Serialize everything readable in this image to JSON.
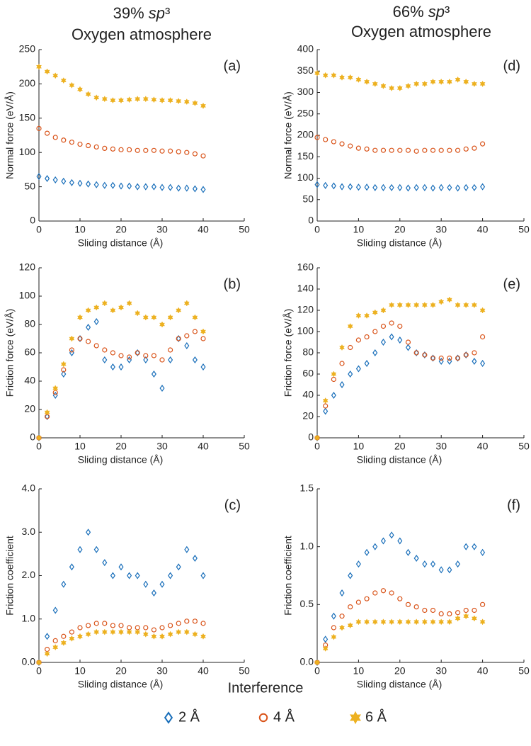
{
  "columns": [
    {
      "prefix": "39% ",
      "italic": "sp",
      "suffix": "³",
      "subtitle": "Oxygen atmosphere"
    },
    {
      "prefix": "66% ",
      "italic": "sp",
      "suffix": "³",
      "subtitle": "Oxygen atmosphere"
    }
  ],
  "legend": {
    "title": "Interference",
    "entries": [
      {
        "name": "2 Å",
        "color": "#1a6fba",
        "marker": "diamond"
      },
      {
        "name": "4 Å",
        "color": "#d95319",
        "marker": "circle"
      },
      {
        "name": "6 Å",
        "color": "#edb120",
        "marker": "star"
      }
    ]
  },
  "chart_data": [
    {
      "type": "scatter",
      "panel": "(a)",
      "xlabel": "Sliding distance (Å)",
      "ylabel": "Normal force (eV/Å)",
      "xlim": [
        0,
        50
      ],
      "xticks": [
        0,
        10,
        20,
        30,
        40,
        50
      ],
      "ylim": [
        0,
        250
      ],
      "yticks": [
        0,
        50,
        100,
        150,
        200,
        250
      ],
      "x": [
        0,
        2,
        4,
        6,
        8,
        10,
        12,
        14,
        16,
        18,
        20,
        22,
        24,
        26,
        28,
        30,
        32,
        34,
        36,
        38,
        40
      ],
      "series": [
        {
          "values": [
            65,
            62,
            60,
            58,
            56,
            55,
            54,
            53,
            52,
            52,
            51,
            51,
            50,
            50,
            50,
            49,
            49,
            48,
            48,
            47,
            46
          ]
        },
        {
          "values": [
            135,
            128,
            122,
            118,
            115,
            112,
            110,
            108,
            106,
            105,
            104,
            104,
            103,
            103,
            103,
            102,
            102,
            101,
            100,
            98,
            95
          ]
        },
        {
          "values": [
            225,
            218,
            212,
            205,
            198,
            192,
            185,
            180,
            178,
            176,
            176,
            177,
            178,
            178,
            177,
            176,
            176,
            175,
            174,
            172,
            168
          ]
        }
      ]
    },
    {
      "type": "scatter",
      "panel": "(b)",
      "xlabel": "Sliding distance (Å)",
      "ylabel": "Friction force (eV/Å)",
      "xlim": [
        0,
        50
      ],
      "xticks": [
        0,
        10,
        20,
        30,
        40,
        50
      ],
      "ylim": [
        0,
        120
      ],
      "yticks": [
        0,
        20,
        40,
        60,
        80,
        100,
        120
      ],
      "x": [
        0,
        2,
        4,
        6,
        8,
        10,
        12,
        14,
        16,
        18,
        20,
        22,
        24,
        26,
        28,
        30,
        32,
        34,
        36,
        38,
        40
      ],
      "series": [
        {
          "values": [
            0,
            15,
            30,
            45,
            60,
            70,
            78,
            82,
            55,
            50,
            50,
            55,
            60,
            55,
            45,
            35,
            55,
            70,
            65,
            55,
            50
          ]
        },
        {
          "values": [
            0,
            15,
            32,
            48,
            62,
            70,
            68,
            65,
            62,
            60,
            58,
            57,
            60,
            58,
            58,
            55,
            62,
            70,
            72,
            75,
            70
          ]
        },
        {
          "values": [
            0,
            18,
            35,
            52,
            70,
            85,
            90,
            92,
            95,
            90,
            92,
            95,
            88,
            85,
            85,
            80,
            85,
            90,
            95,
            85,
            75
          ]
        }
      ]
    },
    {
      "type": "scatter",
      "panel": "(c)",
      "xlabel": "Sliding distance (Å)",
      "ylabel": "Friction coefficient",
      "xlim": [
        0,
        50
      ],
      "xticks": [
        0,
        10,
        20,
        30,
        40,
        50
      ],
      "ylim": [
        0,
        4
      ],
      "yticks": [
        {
          "value": 0,
          "label": "0.0"
        },
        {
          "value": 1,
          "label": "1.0"
        },
        {
          "value": 2,
          "label": "2.0"
        },
        {
          "value": 3,
          "label": "3.0"
        },
        {
          "value": 4,
          "label": "4.0"
        }
      ],
      "x": [
        0,
        2,
        4,
        6,
        8,
        10,
        12,
        14,
        16,
        18,
        20,
        22,
        24,
        26,
        28,
        30,
        32,
        34,
        36,
        38,
        40
      ],
      "series": [
        {
          "values": [
            0,
            0.6,
            1.2,
            1.8,
            2.2,
            2.6,
            3.0,
            2.6,
            2.3,
            2.0,
            2.2,
            2.0,
            2.0,
            1.8,
            1.6,
            1.8,
            2.0,
            2.2,
            2.6,
            2.4,
            2.0
          ]
        },
        {
          "values": [
            0,
            0.3,
            0.5,
            0.6,
            0.7,
            0.8,
            0.85,
            0.9,
            0.9,
            0.85,
            0.85,
            0.8,
            0.8,
            0.8,
            0.75,
            0.8,
            0.85,
            0.9,
            0.95,
            0.95,
            0.9
          ]
        },
        {
          "values": [
            0,
            0.2,
            0.35,
            0.45,
            0.55,
            0.6,
            0.65,
            0.7,
            0.7,
            0.7,
            0.7,
            0.7,
            0.7,
            0.65,
            0.6,
            0.6,
            0.65,
            0.7,
            0.7,
            0.65,
            0.6
          ]
        }
      ]
    },
    {
      "type": "scatter",
      "panel": "(d)",
      "xlabel": "Sliding distance (Å)",
      "ylabel": "Normal force (eV/Å)",
      "xlim": [
        0,
        50
      ],
      "xticks": [
        0,
        10,
        20,
        30,
        40,
        50
      ],
      "ylim": [
        0,
        400
      ],
      "yticks": [
        0,
        50,
        100,
        150,
        200,
        250,
        300,
        350,
        400
      ],
      "x": [
        0,
        2,
        4,
        6,
        8,
        10,
        12,
        14,
        16,
        18,
        20,
        22,
        24,
        26,
        28,
        30,
        32,
        34,
        36,
        38,
        40
      ],
      "series": [
        {
          "values": [
            85,
            83,
            82,
            80,
            80,
            79,
            79,
            78,
            78,
            78,
            78,
            77,
            78,
            78,
            77,
            78,
            78,
            77,
            78,
            78,
            80
          ]
        },
        {
          "values": [
            195,
            190,
            185,
            180,
            175,
            170,
            168,
            165,
            165,
            165,
            165,
            165,
            163,
            165,
            165,
            165,
            165,
            165,
            168,
            170,
            180
          ]
        },
        {
          "values": [
            345,
            340,
            340,
            335,
            335,
            330,
            325,
            320,
            315,
            310,
            310,
            315,
            320,
            320,
            325,
            325,
            325,
            330,
            325,
            320,
            320
          ]
        }
      ]
    },
    {
      "type": "scatter",
      "panel": "(e)",
      "xlabel": "Sliding distance (Å)",
      "ylabel": "Friction force (eV/Å)",
      "xlim": [
        0,
        50
      ],
      "xticks": [
        0,
        10,
        20,
        30,
        40,
        50
      ],
      "ylim": [
        0,
        160
      ],
      "yticks": [
        0,
        20,
        40,
        60,
        80,
        100,
        120,
        140,
        160
      ],
      "x": [
        0,
        2,
        4,
        6,
        8,
        10,
        12,
        14,
        16,
        18,
        20,
        22,
        24,
        26,
        28,
        30,
        32,
        34,
        36,
        38,
        40
      ],
      "series": [
        {
          "values": [
            0,
            25,
            40,
            50,
            60,
            65,
            70,
            80,
            90,
            95,
            92,
            85,
            80,
            78,
            75,
            72,
            72,
            75,
            78,
            72,
            70
          ]
        },
        {
          "values": [
            0,
            30,
            55,
            70,
            85,
            92,
            95,
            100,
            105,
            108,
            105,
            90,
            80,
            78,
            75,
            75,
            75,
            75,
            78,
            80,
            95
          ]
        },
        {
          "values": [
            0,
            35,
            60,
            85,
            105,
            115,
            115,
            118,
            120,
            125,
            125,
            125,
            125,
            125,
            125,
            128,
            130,
            125,
            125,
            125,
            120
          ]
        }
      ]
    },
    {
      "type": "scatter",
      "panel": "(f)",
      "xlabel": "Sliding distance (Å)",
      "ylabel": "Friction coefficient",
      "xlim": [
        0,
        50
      ],
      "xticks": [
        0,
        10,
        20,
        30,
        40,
        50
      ],
      "ylim": [
        0,
        1.5
      ],
      "yticks": [
        {
          "value": 0,
          "label": "0.0"
        },
        {
          "value": 0.5,
          "label": "0.5"
        },
        {
          "value": 1,
          "label": "1.0"
        },
        {
          "value": 1.5,
          "label": "1.5"
        }
      ],
      "x": [
        0,
        2,
        4,
        6,
        8,
        10,
        12,
        14,
        16,
        18,
        20,
        22,
        24,
        26,
        28,
        30,
        32,
        34,
        36,
        38,
        40
      ],
      "series": [
        {
          "values": [
            0,
            0.2,
            0.4,
            0.6,
            0.75,
            0.85,
            0.95,
            1.0,
            1.05,
            1.1,
            1.05,
            0.95,
            0.9,
            0.85,
            0.85,
            0.8,
            0.8,
            0.85,
            1.0,
            1.0,
            0.95
          ]
        },
        {
          "values": [
            0,
            0.15,
            0.3,
            0.4,
            0.48,
            0.52,
            0.55,
            0.6,
            0.62,
            0.6,
            0.55,
            0.5,
            0.48,
            0.45,
            0.45,
            0.42,
            0.42,
            0.43,
            0.45,
            0.45,
            0.5
          ]
        },
        {
          "values": [
            0,
            0.12,
            0.22,
            0.3,
            0.32,
            0.35,
            0.35,
            0.35,
            0.35,
            0.35,
            0.35,
            0.35,
            0.35,
            0.35,
            0.35,
            0.35,
            0.35,
            0.38,
            0.4,
            0.38,
            0.35
          ]
        }
      ]
    }
  ]
}
